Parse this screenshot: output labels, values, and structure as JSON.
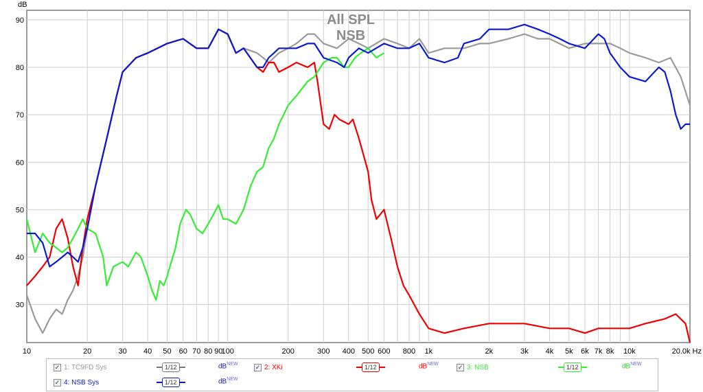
{
  "chart_data": {
    "type": "line",
    "title": [
      "All SPL",
      "NSB"
    ],
    "ylabel": "dB",
    "xunit": "Hz",
    "xscale": "log",
    "xlim": [
      10,
      20000
    ],
    "ylim": [
      22,
      92
    ],
    "grid": true,
    "x_ticks": [
      {
        "v": 10,
        "t": "10"
      },
      {
        "v": 20,
        "t": "20"
      },
      {
        "v": 30,
        "t": "30"
      },
      {
        "v": 40,
        "t": "40"
      },
      {
        "v": 50,
        "t": "50"
      },
      {
        "v": 60,
        "t": "60"
      },
      {
        "v": 70,
        "t": "70"
      },
      {
        "v": 80,
        "t": "80"
      },
      {
        "v": 90,
        "t": "90"
      },
      {
        "v": 100,
        "t": "100"
      },
      {
        "v": 200,
        "t": "200"
      },
      {
        "v": 300,
        "t": "300"
      },
      {
        "v": 400,
        "t": "400"
      },
      {
        "v": 500,
        "t": "500"
      },
      {
        "v": 600,
        "t": "600"
      },
      {
        "v": 800,
        "t": "800"
      },
      {
        "v": 1000,
        "t": "1k"
      },
      {
        "v": 2000,
        "t": "2k"
      },
      {
        "v": 3000,
        "t": "3k"
      },
      {
        "v": 4000,
        "t": "4k"
      },
      {
        "v": 5000,
        "t": "5k"
      },
      {
        "v": 6000,
        "t": "6k"
      },
      {
        "v": 7000,
        "t": "7k"
      },
      {
        "v": 8000,
        "t": "8k"
      },
      {
        "v": 10000,
        "t": "10k"
      },
      {
        "v": 20000,
        "t": "20.0k Hz"
      }
    ],
    "x_minor": [
      700,
      900,
      9000
    ],
    "y_ticks": [
      30,
      40,
      50,
      60,
      70,
      80,
      90
    ],
    "series": [
      {
        "name": "TC9FD Sys",
        "color": "#9a9a9a",
        "points": [
          [
            10,
            32
          ],
          [
            11,
            27
          ],
          [
            12,
            24
          ],
          [
            13,
            27
          ],
          [
            14,
            29
          ],
          [
            15,
            28
          ],
          [
            16,
            31
          ],
          [
            17,
            33
          ],
          [
            18,
            36
          ],
          [
            19,
            40
          ],
          [
            20,
            46
          ],
          [
            22,
            55
          ],
          [
            25,
            65
          ],
          [
            28,
            74
          ],
          [
            30,
            79
          ],
          [
            35,
            82
          ],
          [
            40,
            83
          ],
          [
            50,
            85
          ],
          [
            60,
            86
          ],
          [
            70,
            84
          ],
          [
            80,
            84
          ],
          [
            90,
            88
          ],
          [
            100,
            87
          ],
          [
            110,
            83
          ],
          [
            120,
            84
          ],
          [
            140,
            83
          ],
          [
            150,
            82
          ],
          [
            160,
            81
          ],
          [
            170,
            82
          ],
          [
            180,
            83
          ],
          [
            200,
            84
          ],
          [
            220,
            85
          ],
          [
            250,
            87
          ],
          [
            270,
            87
          ],
          [
            300,
            85
          ],
          [
            350,
            84
          ],
          [
            400,
            86
          ],
          [
            450,
            85
          ],
          [
            500,
            84
          ],
          [
            600,
            86
          ],
          [
            700,
            85
          ],
          [
            800,
            84
          ],
          [
            900,
            86
          ],
          [
            1000,
            83
          ],
          [
            1200,
            84
          ],
          [
            1500,
            84
          ],
          [
            1800,
            85
          ],
          [
            2000,
            85
          ],
          [
            2500,
            86
          ],
          [
            3000,
            87
          ],
          [
            3500,
            86
          ],
          [
            4000,
            86
          ],
          [
            5000,
            84
          ],
          [
            6000,
            85
          ],
          [
            7000,
            85
          ],
          [
            8000,
            85
          ],
          [
            9000,
            84
          ],
          [
            10000,
            83
          ],
          [
            12000,
            82
          ],
          [
            14000,
            81
          ],
          [
            16000,
            82
          ],
          [
            18000,
            78
          ],
          [
            20000,
            72
          ]
        ]
      },
      {
        "name": "XKi",
        "color": "#ee0000",
        "points": [
          [
            10,
            34
          ],
          [
            11,
            36
          ],
          [
            12,
            38
          ],
          [
            13,
            40
          ],
          [
            14,
            46
          ],
          [
            15,
            48
          ],
          [
            16,
            44
          ],
          [
            17,
            38
          ],
          [
            18,
            34
          ],
          [
            19,
            42
          ],
          [
            20,
            48
          ],
          [
            22,
            55
          ],
          [
            25,
            65
          ],
          [
            28,
            74
          ],
          [
            30,
            79
          ],
          [
            35,
            82
          ],
          [
            40,
            83
          ],
          [
            50,
            85
          ],
          [
            60,
            86
          ],
          [
            70,
            84
          ],
          [
            80,
            84
          ],
          [
            90,
            88
          ],
          [
            100,
            87
          ],
          [
            110,
            83
          ],
          [
            120,
            84
          ],
          [
            140,
            80
          ],
          [
            150,
            79
          ],
          [
            160,
            81
          ],
          [
            170,
            81
          ],
          [
            180,
            79
          ],
          [
            200,
            80
          ],
          [
            220,
            81
          ],
          [
            250,
            80
          ],
          [
            270,
            81
          ],
          [
            280,
            77
          ],
          [
            300,
            68
          ],
          [
            320,
            67
          ],
          [
            340,
            70
          ],
          [
            360,
            69
          ],
          [
            400,
            68
          ],
          [
            420,
            69
          ],
          [
            450,
            65
          ],
          [
            500,
            58
          ],
          [
            520,
            52
          ],
          [
            550,
            48
          ],
          [
            600,
            50
          ],
          [
            650,
            44
          ],
          [
            700,
            38
          ],
          [
            750,
            34
          ],
          [
            800,
            32
          ],
          [
            900,
            28
          ],
          [
            1000,
            25
          ],
          [
            1200,
            24
          ],
          [
            1500,
            25
          ],
          [
            2000,
            26
          ],
          [
            3000,
            26
          ],
          [
            4000,
            25
          ],
          [
            5000,
            25
          ],
          [
            6000,
            24
          ],
          [
            7000,
            25
          ],
          [
            8000,
            25
          ],
          [
            10000,
            25
          ],
          [
            12000,
            26
          ],
          [
            15000,
            27
          ],
          [
            17000,
            28
          ],
          [
            19000,
            26
          ],
          [
            20000,
            22
          ]
        ]
      },
      {
        "name": "NSB",
        "color": "#33ee33",
        "points": [
          [
            10,
            48
          ],
          [
            11,
            41
          ],
          [
            12,
            45
          ],
          [
            13,
            43
          ],
          [
            14,
            42
          ],
          [
            15,
            41
          ],
          [
            16,
            42
          ],
          [
            17,
            44
          ],
          [
            18,
            46
          ],
          [
            19,
            48
          ],
          [
            20,
            46
          ],
          [
            22,
            45
          ],
          [
            24,
            40
          ],
          [
            25,
            34
          ],
          [
            27,
            38
          ],
          [
            30,
            39
          ],
          [
            32,
            38
          ],
          [
            35,
            41
          ],
          [
            37,
            40
          ],
          [
            40,
            36
          ],
          [
            42,
            33
          ],
          [
            44,
            31
          ],
          [
            46,
            35
          ],
          [
            48,
            34
          ],
          [
            50,
            36
          ],
          [
            55,
            42
          ],
          [
            58,
            47
          ],
          [
            62,
            50
          ],
          [
            65,
            49
          ],
          [
            70,
            46
          ],
          [
            75,
            45
          ],
          [
            80,
            47
          ],
          [
            85,
            49
          ],
          [
            90,
            51
          ],
          [
            95,
            48
          ],
          [
            100,
            48
          ],
          [
            110,
            47
          ],
          [
            120,
            50
          ],
          [
            130,
            55
          ],
          [
            140,
            58
          ],
          [
            150,
            59
          ],
          [
            160,
            63
          ],
          [
            170,
            65
          ],
          [
            180,
            68
          ],
          [
            190,
            70
          ],
          [
            200,
            72
          ],
          [
            220,
            74
          ],
          [
            250,
            77
          ],
          [
            270,
            78
          ],
          [
            300,
            81
          ],
          [
            330,
            82
          ],
          [
            350,
            82
          ],
          [
            380,
            80
          ],
          [
            400,
            80
          ],
          [
            430,
            82
          ],
          [
            460,
            83
          ],
          [
            500,
            84
          ],
          [
            550,
            82
          ],
          [
            600,
            83
          ]
        ]
      },
      {
        "name": "NSB Sys",
        "color": "#0a1ad2",
        "points": [
          [
            10,
            45
          ],
          [
            11,
            45
          ],
          [
            12,
            43
          ],
          [
            13,
            38
          ],
          [
            14,
            39
          ],
          [
            15,
            40
          ],
          [
            16,
            41
          ],
          [
            17,
            40
          ],
          [
            18,
            39
          ],
          [
            19,
            42
          ],
          [
            20,
            46
          ],
          [
            22,
            55
          ],
          [
            25,
            65
          ],
          [
            28,
            74
          ],
          [
            30,
            79
          ],
          [
            35,
            82
          ],
          [
            40,
            83
          ],
          [
            50,
            85
          ],
          [
            60,
            86
          ],
          [
            70,
            84
          ],
          [
            80,
            84
          ],
          [
            90,
            88
          ],
          [
            100,
            87
          ],
          [
            110,
            83
          ],
          [
            120,
            84
          ],
          [
            140,
            80
          ],
          [
            150,
            80
          ],
          [
            160,
            82
          ],
          [
            170,
            83
          ],
          [
            180,
            84
          ],
          [
            200,
            84
          ],
          [
            220,
            84
          ],
          [
            250,
            85
          ],
          [
            270,
            85
          ],
          [
            300,
            82
          ],
          [
            350,
            81
          ],
          [
            380,
            80
          ],
          [
            400,
            82
          ],
          [
            450,
            84
          ],
          [
            500,
            83
          ],
          [
            600,
            85
          ],
          [
            700,
            84
          ],
          [
            800,
            84
          ],
          [
            900,
            85
          ],
          [
            1000,
            82
          ],
          [
            1200,
            81
          ],
          [
            1400,
            82
          ],
          [
            1500,
            85
          ],
          [
            1800,
            86
          ],
          [
            2000,
            88
          ],
          [
            2500,
            88
          ],
          [
            3000,
            89
          ],
          [
            3500,
            88
          ],
          [
            4000,
            87
          ],
          [
            4500,
            86
          ],
          [
            5000,
            85
          ],
          [
            6000,
            84
          ],
          [
            7000,
            87
          ],
          [
            7500,
            86
          ],
          [
            8000,
            83
          ],
          [
            9000,
            80
          ],
          [
            10000,
            78
          ],
          [
            12000,
            77
          ],
          [
            14000,
            80
          ],
          [
            15000,
            79
          ],
          [
            16000,
            75
          ],
          [
            17000,
            70
          ],
          [
            18000,
            67
          ],
          [
            19000,
            68
          ],
          [
            20000,
            68
          ]
        ]
      }
    ]
  },
  "legend": [
    {
      "num": "1: TC9FD Sys",
      "checked": "✓",
      "smoothing": "1/12",
      "unit": "dB",
      "badge": "NEW",
      "color": "#9a9a9a"
    },
    {
      "num": "2: XKi",
      "checked": "✓",
      "smoothing": "1/12",
      "unit": "dB",
      "badge": "NEW",
      "color": "#ee0000"
    },
    {
      "num": "3: NSB",
      "checked": "✓",
      "smoothing": "1/12",
      "unit": "dB",
      "badge": "NEW",
      "color": "#33ee33"
    },
    {
      "num": "4: NSB Sys",
      "checked": "✓",
      "smoothing": "1/12",
      "unit": "dB",
      "badge": "NEW",
      "color": "#0a1ad2"
    }
  ]
}
